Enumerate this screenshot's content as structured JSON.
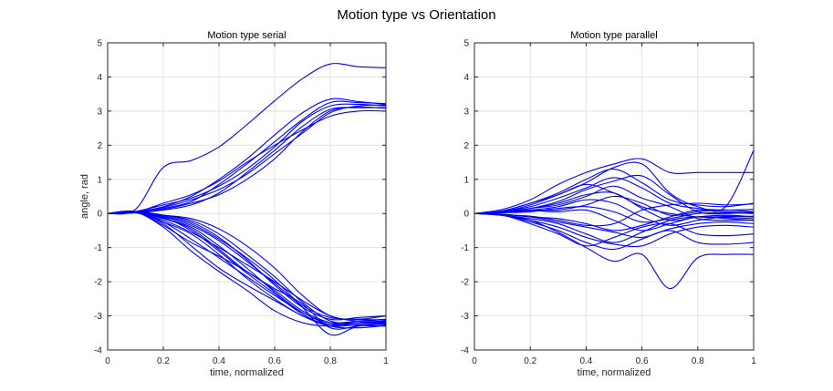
{
  "figure": {
    "suptitle": "Motion type vs Orientation"
  },
  "colors": {
    "line": "#0000ff",
    "grid": "#e3e3e3",
    "axis": "#262626"
  },
  "chart_data": [
    {
      "type": "line",
      "title": "Motion type serial",
      "xlabel": "time, normalized",
      "ylabel": "angle, rad",
      "xlim": [
        0,
        1
      ],
      "ylim": [
        -4,
        5
      ],
      "xticks": [
        0,
        0.2,
        0.4,
        0.6,
        0.8,
        1
      ],
      "xticklabels": [
        "0",
        "0.2",
        "0.4",
        "0.6",
        "0.8",
        "1"
      ],
      "yticks": [
        -4,
        -3,
        -2,
        -1,
        0,
        1,
        2,
        3,
        4,
        5
      ],
      "yticklabels": [
        "-4",
        "-3",
        "-2",
        "-1",
        "0",
        "1",
        "2",
        "3",
        "4",
        "5"
      ],
      "grid": true,
      "x": [
        0,
        0.1,
        0.2,
        0.3,
        0.4,
        0.5,
        0.6,
        0.7,
        0.8,
        0.9,
        1.0
      ],
      "series": [
        {
          "values": [
            0,
            0.12,
            1.35,
            1.55,
            1.95,
            2.6,
            3.3,
            3.95,
            4.38,
            4.3,
            4.27
          ]
        },
        {
          "values": [
            0,
            0.05,
            0.2,
            0.5,
            1.0,
            1.6,
            2.3,
            2.95,
            3.35,
            3.28,
            3.2
          ]
        },
        {
          "values": [
            0,
            0.03,
            0.15,
            0.35,
            0.85,
            1.45,
            2.1,
            2.75,
            3.25,
            3.25,
            3.22
          ]
        },
        {
          "values": [
            0,
            0.06,
            0.25,
            0.45,
            0.8,
            1.3,
            1.95,
            2.7,
            3.15,
            3.2,
            3.15
          ]
        },
        {
          "values": [
            0,
            0.02,
            0.1,
            0.25,
            0.6,
            1.2,
            1.85,
            2.55,
            3.05,
            3.1,
            3.1
          ]
        },
        {
          "values": [
            0,
            0.04,
            0.3,
            0.55,
            0.95,
            1.5,
            2.0,
            2.45,
            2.85,
            3.0,
            3.0
          ]
        },
        {
          "values": [
            0,
            0.05,
            0.18,
            0.4,
            0.7,
            1.15,
            1.75,
            2.35,
            2.95,
            3.15,
            3.18
          ]
        },
        {
          "values": [
            0,
            0.02,
            0.12,
            0.3,
            0.55,
            1.0,
            1.6,
            2.4,
            3.0,
            3.12,
            3.08
          ]
        },
        {
          "values": [
            0,
            0.05,
            -0.05,
            -0.25,
            -0.7,
            -1.35,
            -2.1,
            -2.75,
            -3.1,
            -3.05,
            -3.0
          ]
        },
        {
          "values": [
            0,
            0.03,
            -0.15,
            -0.4,
            -0.95,
            -1.6,
            -2.3,
            -2.9,
            -3.2,
            -3.15,
            -3.1
          ]
        },
        {
          "values": [
            0,
            0.02,
            -0.25,
            -0.75,
            -1.3,
            -1.85,
            -2.4,
            -2.9,
            -3.25,
            -3.2,
            -3.15
          ]
        },
        {
          "values": [
            0,
            0.04,
            -0.3,
            -0.95,
            -1.6,
            -2.1,
            -2.55,
            -3.0,
            -3.3,
            -3.25,
            -3.2
          ]
        },
        {
          "values": [
            0,
            0.03,
            -0.1,
            -0.35,
            -0.8,
            -1.4,
            -2.05,
            -2.7,
            -3.05,
            -3.1,
            -3.12
          ]
        },
        {
          "values": [
            0,
            0.05,
            -0.05,
            -0.2,
            -0.6,
            -1.2,
            -1.85,
            -2.6,
            -3.15,
            -3.2,
            -3.18
          ]
        },
        {
          "values": [
            0,
            0.02,
            -0.2,
            -0.55,
            -1.0,
            -1.5,
            -2.0,
            -2.55,
            -3.0,
            -3.15,
            -3.1
          ]
        },
        {
          "values": [
            0,
            0.04,
            -0.4,
            -1.1,
            -1.7,
            -2.25,
            -2.85,
            -3.2,
            -3.3,
            -3.2,
            -3.15
          ]
        },
        {
          "values": [
            0,
            0.03,
            -0.15,
            -0.45,
            -1.05,
            -1.7,
            -2.2,
            -2.65,
            -3.35,
            -3.3,
            -3.22
          ]
        },
        {
          "values": [
            0,
            0.02,
            -0.08,
            -0.3,
            -0.75,
            -1.3,
            -1.95,
            -2.75,
            -3.55,
            -3.3,
            -3.25
          ]
        },
        {
          "values": [
            0,
            0.06,
            -0.35,
            -0.85,
            -1.25,
            -1.7,
            -2.25,
            -2.85,
            -3.2,
            -3.28,
            -3.3
          ]
        },
        {
          "values": [
            0,
            0.03,
            -0.05,
            -0.15,
            -0.45,
            -0.95,
            -1.6,
            -2.4,
            -3.0,
            -3.1,
            -3.0
          ]
        },
        {
          "values": [
            0,
            0.04,
            -0.25,
            -0.6,
            -1.2,
            -1.9,
            -2.5,
            -3.0,
            -3.25,
            -3.2,
            -3.22
          ]
        },
        {
          "values": [
            0,
            0.02,
            -0.12,
            -0.5,
            -1.1,
            -1.75,
            -2.35,
            -2.95,
            -3.3,
            -3.35,
            -3.28
          ]
        }
      ]
    },
    {
      "type": "line",
      "title": "Motion type parallel",
      "xlabel": "time, normalized",
      "ylabel": "",
      "xlim": [
        0,
        1
      ],
      "ylim": [
        -4,
        5
      ],
      "xticks": [
        0,
        0.2,
        0.4,
        0.6,
        0.8,
        1
      ],
      "xticklabels": [
        "0",
        "0.2",
        "0.4",
        "0.6",
        "0.8",
        "1"
      ],
      "yticks": [
        -4,
        -3,
        -2,
        -1,
        0,
        1,
        2,
        3,
        4,
        5
      ],
      "yticklabels": [
        "-4",
        "-3",
        "-2",
        "-1",
        "0",
        "1",
        "2",
        "3",
        "4",
        "5"
      ],
      "grid": true,
      "x": [
        0,
        0.1,
        0.2,
        0.3,
        0.4,
        0.5,
        0.6,
        0.7,
        0.8,
        0.9,
        1.0
      ],
      "series": [
        {
          "values": [
            0,
            0.12,
            0.4,
            0.85,
            1.2,
            1.45,
            1.6,
            1.2,
            1.2,
            1.2,
            1.2
          ]
        },
        {
          "values": [
            0,
            0.05,
            0.25,
            0.55,
            0.9,
            1.35,
            1.45,
            0.6,
            0.2,
            0.2,
            1.85
          ]
        },
        {
          "values": [
            0,
            -0.05,
            -0.2,
            -0.55,
            -1.0,
            -1.4,
            -1.2,
            -2.2,
            -1.3,
            -1.2,
            -1.2
          ]
        },
        {
          "values": [
            0,
            0.08,
            0.3,
            0.6,
            1.0,
            1.3,
            0.9,
            0.4,
            0.25,
            0.2,
            0.3
          ]
        },
        {
          "values": [
            0,
            -0.04,
            -0.25,
            -0.5,
            -0.85,
            -1.05,
            -0.75,
            -0.5,
            -0.85,
            -0.9,
            -0.85
          ]
        },
        {
          "values": [
            0,
            0.05,
            0.15,
            0.3,
            0.55,
            0.6,
            0.15,
            -0.2,
            -0.1,
            -0.05,
            -0.1
          ]
        },
        {
          "values": [
            0,
            0.03,
            0.1,
            0.1,
            0.25,
            0.5,
            0.3,
            -0.05,
            0.05,
            0.1,
            0.05
          ]
        },
        {
          "values": [
            0,
            -0.05,
            -0.15,
            -0.3,
            -0.6,
            -0.85,
            -0.55,
            -0.2,
            -0.1,
            -0.15,
            -0.2
          ]
        },
        {
          "values": [
            0,
            0.06,
            0.2,
            0.45,
            0.75,
            1.05,
            0.75,
            0.3,
            0.15,
            0.1,
            0.12
          ]
        },
        {
          "values": [
            0,
            -0.03,
            -0.1,
            -0.25,
            -0.4,
            -0.55,
            -0.7,
            -0.45,
            -0.3,
            -0.25,
            -0.3
          ]
        },
        {
          "values": [
            0,
            0.04,
            0.1,
            0.2,
            0.4,
            0.3,
            -0.1,
            -0.35,
            -0.2,
            -0.1,
            -0.08
          ]
        },
        {
          "values": [
            0,
            -0.06,
            -0.2,
            -0.4,
            -0.7,
            -0.9,
            -0.95,
            -0.6,
            -0.4,
            -0.35,
            -0.4
          ]
        },
        {
          "values": [
            0,
            0.02,
            0.05,
            0.15,
            0.2,
            0.05,
            -0.25,
            -0.15,
            0.0,
            0.02,
            0.0
          ]
        },
        {
          "values": [
            0,
            0.05,
            0.15,
            0.35,
            0.7,
            0.95,
            1.1,
            0.55,
            0.05,
            0.0,
            0.05
          ]
        },
        {
          "values": [
            0,
            -0.02,
            -0.1,
            -0.15,
            -0.3,
            -0.5,
            -0.35,
            -0.1,
            0.1,
            0.05,
            0.02
          ]
        },
        {
          "values": [
            0,
            0.03,
            0.15,
            0.25,
            0.5,
            0.8,
            0.45,
            0.2,
            -0.15,
            -0.2,
            -0.2
          ]
        },
        {
          "values": [
            0,
            -0.04,
            -0.08,
            -0.2,
            -0.35,
            -0.3,
            0.1,
            0.25,
            0.3,
            0.25,
            0.28
          ]
        },
        {
          "values": [
            0,
            0.07,
            0.3,
            0.55,
            0.85,
            0.6,
            0.2,
            0.0,
            -0.1,
            -0.12,
            -0.15
          ]
        },
        {
          "values": [
            0,
            -0.05,
            -0.3,
            -0.6,
            -0.95,
            -0.7,
            -0.4,
            -0.3,
            -0.6,
            -0.65,
            -0.6
          ]
        },
        {
          "values": [
            0,
            0.02,
            0.08,
            0.05,
            0.1,
            -0.2,
            -0.5,
            -0.3,
            -0.1,
            -0.08,
            -0.1
          ]
        }
      ]
    }
  ]
}
